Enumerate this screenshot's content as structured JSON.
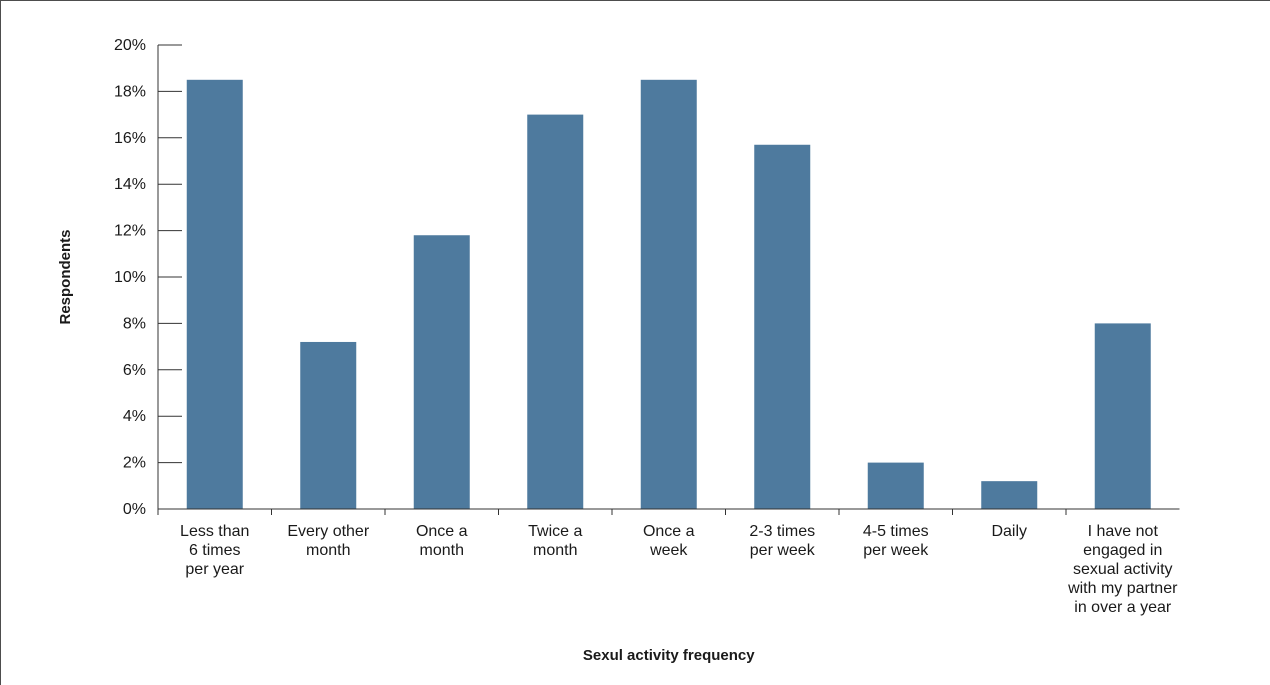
{
  "chart_data": {
    "type": "bar",
    "xlabel": "Sexul activity frequency",
    "ylabel": "Respondents",
    "ylim": [
      0,
      20
    ],
    "yticks": [
      "0%",
      "2%",
      "4%",
      "6%",
      "8%",
      "10%",
      "12%",
      "14%",
      "16%",
      "18%",
      "20%"
    ],
    "grid": false,
    "categories": [
      [
        "Less than",
        "6 times",
        "per year"
      ],
      [
        "Every other",
        "month"
      ],
      [
        "Once a",
        "month"
      ],
      [
        "Twice a",
        "month"
      ],
      [
        "Once a",
        "week"
      ],
      [
        "2-3 times",
        "per week"
      ],
      [
        "4-5 times",
        "per week"
      ],
      [
        "Daily"
      ],
      [
        "I have not",
        "engaged in",
        "sexual activity",
        "with my partner",
        "in over a year"
      ]
    ],
    "values": [
      18.5,
      7.2,
      11.8,
      17.0,
      18.5,
      15.7,
      2.0,
      1.2,
      8.0
    ],
    "bar_color": "#4e7a9e"
  }
}
